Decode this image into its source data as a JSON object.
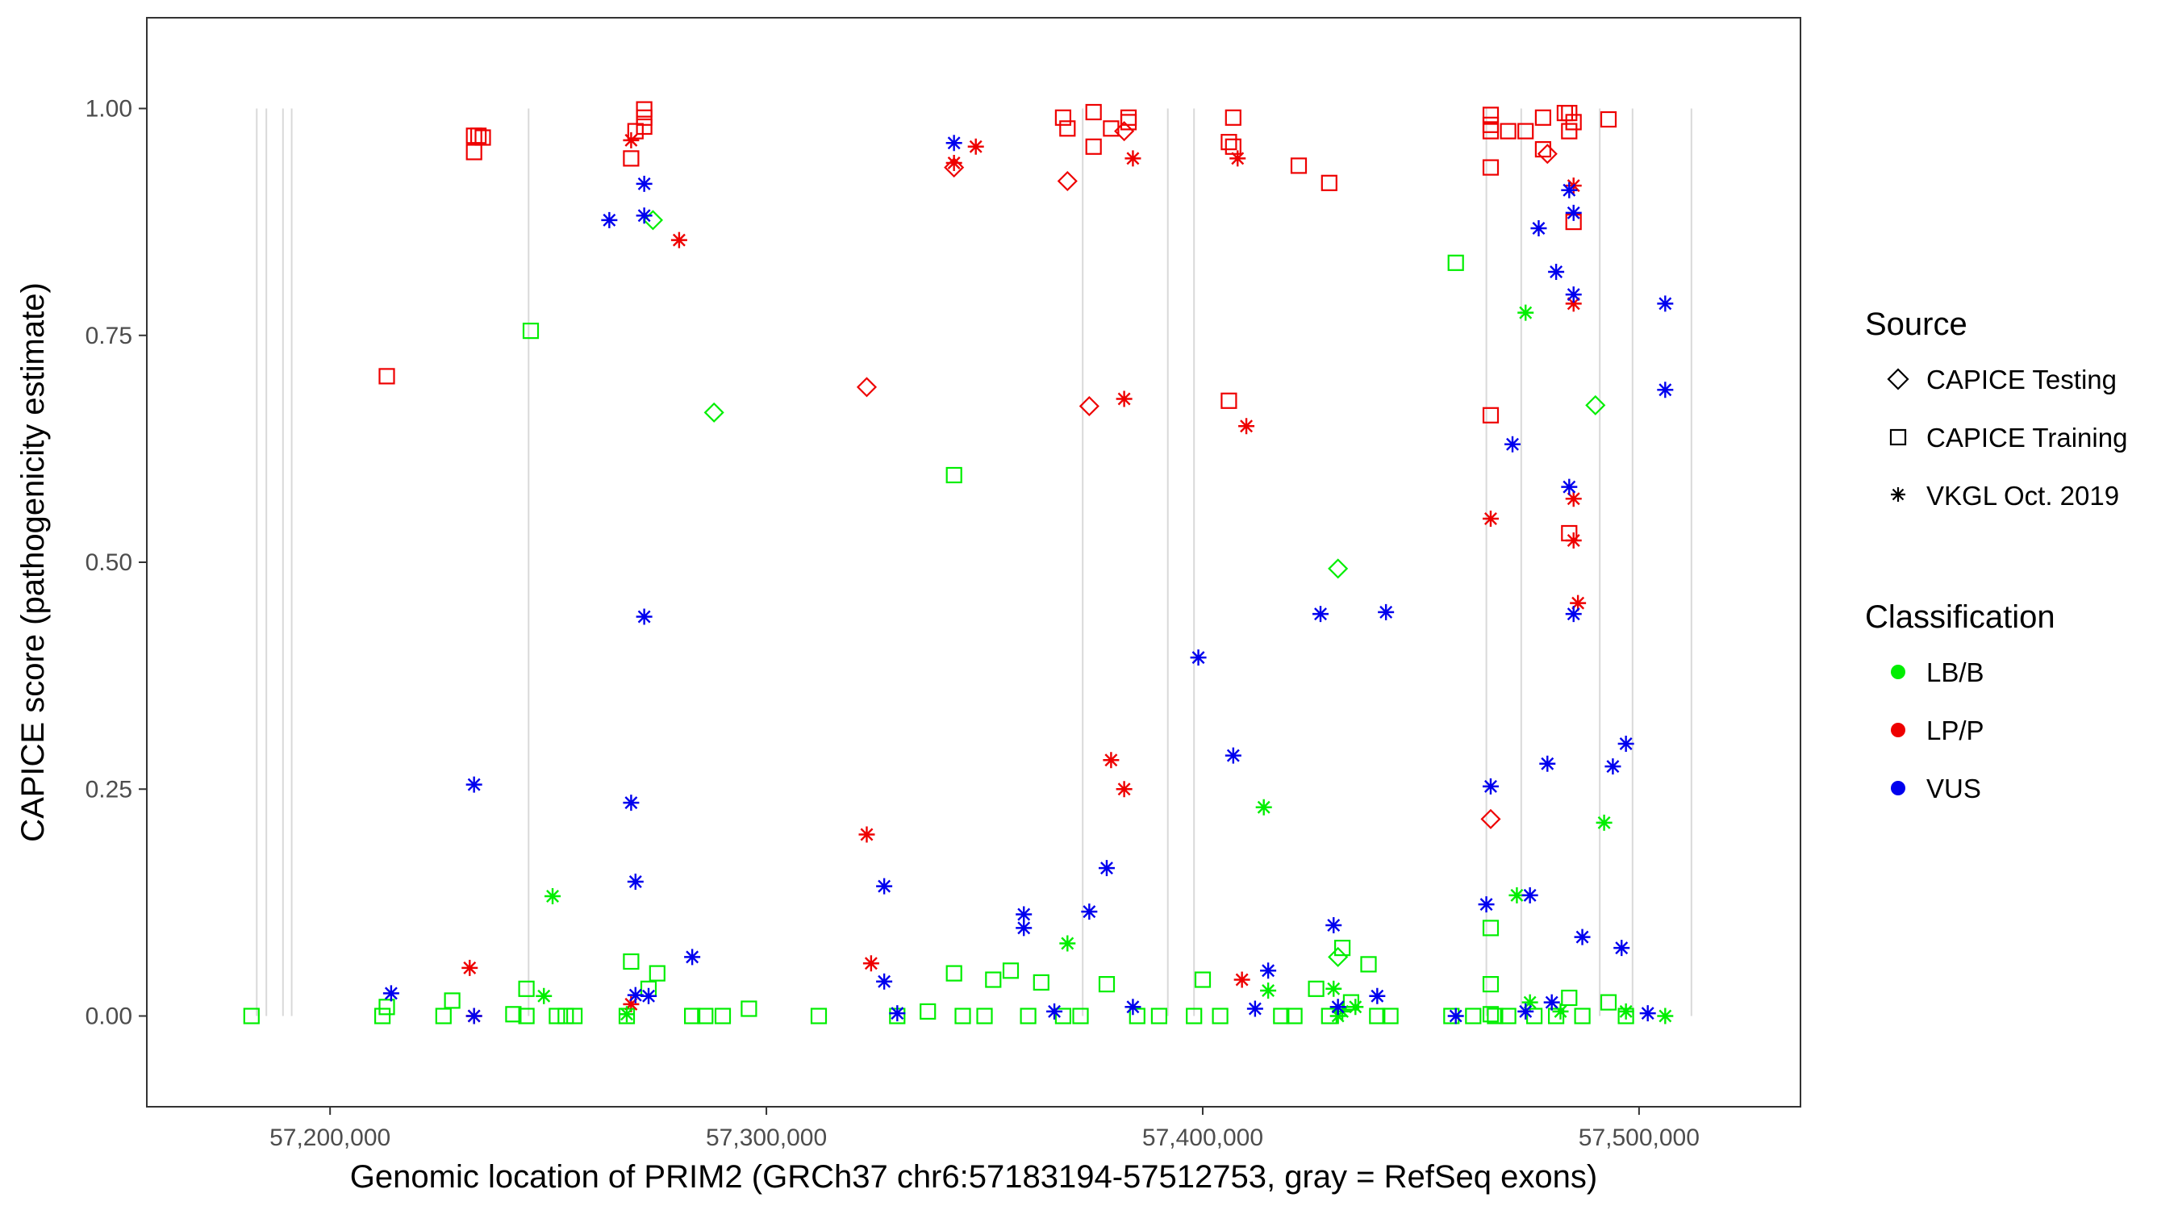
{
  "chart_data": {
    "type": "scatter",
    "title": "",
    "xlabel": "Genomic location of PRIM2 (GRCh37 chr6:57183194-57512753, gray = RefSeq exons)",
    "ylabel": "CAPICE score (pathogenicity estimate)",
    "xlim": [
      57158000,
      57537000
    ],
    "ylim": [
      -0.1,
      1.1
    ],
    "x_ticks": [
      57200000,
      57300000,
      57400000,
      57500000
    ],
    "x_tick_labels": [
      "57,200,000",
      "57,300,000",
      "57,400,000",
      "57,500,000"
    ],
    "y_ticks": [
      0,
      0.25,
      0.5,
      0.75,
      1
    ],
    "y_tick_labels": [
      "0.00",
      "0.25",
      "0.50",
      "0.75",
      "1.00"
    ],
    "grid": false,
    "exon_lines": [
      57183200,
      57185400,
      57189200,
      57191200,
      57245500,
      57372500,
      57392000,
      57398000,
      57465000,
      57473000,
      57491000,
      57498500,
      57512000
    ],
    "legend_position": "right",
    "legend": {
      "source_title": "Source",
      "source_items": [
        {
          "label": "CAPICE Testing",
          "shape": "diamond"
        },
        {
          "label": "CAPICE Training",
          "shape": "square"
        },
        {
          "label": "VKGL Oct. 2019",
          "shape": "asterisk"
        }
      ],
      "class_title": "Classification",
      "class_items": [
        {
          "label": "LB/B",
          "color": "#00ee00"
        },
        {
          "label": "LP/P",
          "color": "#ee0000"
        },
        {
          "label": "VUS",
          "color": "#0000ee"
        }
      ]
    },
    "colors": {
      "LB/B": "#00ee00",
      "LP/P": "#ee0000",
      "VUS": "#0000ee"
    },
    "series": [
      {
        "name": "CAPICE Testing / LP/P",
        "shape": "diamond",
        "class": "LP/P",
        "x": [
          57343000,
          57323000,
          57369000,
          57374000,
          57382000,
          57466000,
          57479000
        ],
        "y": [
          0.935,
          0.693,
          0.92,
          0.672,
          0.975,
          0.217,
          0.95
        ]
      },
      {
        "name": "CAPICE Testing / LB/B",
        "shape": "diamond",
        "class": "LB/B",
        "x": [
          57274000,
          57288000,
          57431000,
          57431000,
          57490000
        ],
        "y": [
          0.877,
          0.665,
          0.493,
          0.065,
          0.673
        ]
      },
      {
        "name": "CAPICE Training / LP/P",
        "shape": "square",
        "class": "LP/P",
        "x": [
          57213000,
          57233000,
          57234000,
          57235000,
          57233000,
          57270000,
          57272000,
          57272000,
          57272000,
          57269000,
          57368000,
          57369000,
          57375000,
          57375000,
          57379000,
          57383000,
          57383000,
          57407000,
          57406000,
          57407000,
          57406000,
          57422000,
          57429000,
          57466000,
          57466000,
          57466000,
          57470000,
          57474000,
          57478000,
          57478000,
          57483000,
          57484000,
          57485000,
          57493000,
          57466000,
          57466000,
          57484000,
          57485000,
          57484000
        ],
        "y": [
          0.705,
          0.97,
          0.97,
          0.968,
          0.952,
          0.975,
          0.999,
          0.99,
          0.98,
          0.945,
          0.99,
          0.978,
          0.996,
          0.958,
          0.978,
          0.99,
          0.985,
          0.99,
          0.963,
          0.958,
          0.678,
          0.937,
          0.918,
          0.993,
          0.982,
          0.975,
          0.975,
          0.975,
          0.99,
          0.955,
          0.995,
          0.995,
          0.985,
          0.988,
          0.935,
          0.662,
          0.532,
          0.875,
          0.975
        ]
      },
      {
        "name": "CAPICE Training / LB/B",
        "shape": "square",
        "class": "LB/B",
        "x": [
          57182000,
          57212000,
          57213000,
          57226000,
          57228000,
          57242000,
          57245000,
          57245000,
          57246000,
          57252000,
          57254000,
          57256000,
          57268000,
          57269000,
          57273000,
          57275000,
          57283000,
          57286000,
          57290000,
          57296000,
          57312000,
          57330000,
          57337000,
          57343000,
          57345000,
          57350000,
          57352000,
          57356000,
          57360000,
          57363000,
          57368000,
          57372000,
          57378000,
          57385000,
          57390000,
          57398000,
          57400000,
          57404000,
          57418000,
          57421000,
          57426000,
          57429000,
          57432000,
          57434000,
          57438000,
          57440000,
          57443000,
          57457000,
          57458000,
          57462000,
          57466000,
          57467000,
          57470000,
          57476000,
          57481000,
          57484000,
          57487000,
          57493000,
          57497000,
          57343000,
          57466000,
          57466000
        ],
        "y": [
          0.0,
          0.0,
          0.01,
          0.0,
          0.017,
          0.002,
          0.0,
          0.03,
          0.755,
          0.0,
          0.0,
          0.0,
          0.0,
          0.06,
          0.03,
          0.047,
          0.0,
          0.0,
          0.0,
          0.008,
          0.0,
          0.0,
          0.005,
          0.047,
          0.0,
          0.0,
          0.04,
          0.05,
          0.0,
          0.037,
          0.0,
          0.0,
          0.035,
          0.0,
          0.0,
          0.0,
          0.04,
          0.0,
          0.0,
          0.0,
          0.03,
          0.0,
          0.075,
          0.015,
          0.057,
          0.0,
          0.0,
          0.0,
          0.83,
          0.0,
          0.035,
          0.0,
          0.0,
          0.0,
          0.0,
          0.02,
          0.0,
          0.015,
          0.0,
          0.596,
          0.097,
          0.002
        ]
      },
      {
        "name": "VKGL Oct. 2019 / LP/P",
        "shape": "asterisk",
        "class": "LP/P",
        "x": [
          57232000,
          57233000,
          57269000,
          57280000,
          57323000,
          57324000,
          57343000,
          57348000,
          57379000,
          57382000,
          57382000,
          57384000,
          57408000,
          57409000,
          57410000,
          57466000,
          57485000,
          57485000,
          57485000,
          57485000,
          57486000,
          57269000
        ],
        "y": [
          0.053,
          0.0,
          0.965,
          0.855,
          0.2,
          0.058,
          0.94,
          0.958,
          0.282,
          0.25,
          0.68,
          0.945,
          0.945,
          0.04,
          0.65,
          0.548,
          0.915,
          0.785,
          0.57,
          0.524,
          0.455,
          0.013
        ]
      },
      {
        "name": "VKGL Oct. 2019 / LB/B",
        "shape": "asterisk",
        "class": "LB/B",
        "x": [
          57249000,
          57251000,
          57268000,
          57369000,
          57414000,
          57415000,
          57430000,
          57431000,
          57432000,
          57435000,
          57472000,
          57474000,
          57475000,
          57482000,
          57492000,
          57497000,
          57506000
        ],
        "y": [
          0.022,
          0.132,
          0.002,
          0.08,
          0.23,
          0.028,
          0.03,
          0.0,
          0.005,
          0.01,
          0.133,
          0.775,
          0.015,
          0.005,
          0.213,
          0.005,
          0.0
        ]
      },
      {
        "name": "VKGL Oct. 2019 / VUS",
        "shape": "asterisk",
        "class": "VUS",
        "x": [
          57214000,
          57233000,
          57233000,
          57264000,
          57269000,
          57270000,
          57270000,
          57272000,
          57272000,
          57272000,
          57273000,
          57283000,
          57327000,
          57327000,
          57330000,
          57343000,
          57359000,
          57359000,
          57366000,
          57374000,
          57378000,
          57384000,
          57399000,
          57407000,
          57412000,
          57415000,
          57427000,
          57430000,
          57431000,
          57440000,
          57442000,
          57458000,
          57465000,
          57466000,
          57471000,
          57474000,
          57475000,
          57477000,
          57479000,
          57480000,
          57481000,
          57484000,
          57484000,
          57485000,
          57485000,
          57485000,
          57487000,
          57494000,
          57496000,
          57497000,
          57502000,
          57506000,
          57506000
        ],
        "y": [
          0.025,
          0.255,
          0.0,
          0.877,
          0.235,
          0.148,
          0.023,
          0.917,
          0.882,
          0.44,
          0.022,
          0.065,
          0.143,
          0.038,
          0.003,
          0.962,
          0.112,
          0.097,
          0.005,
          0.115,
          0.163,
          0.01,
          0.395,
          0.287,
          0.008,
          0.05,
          0.443,
          0.1,
          0.01,
          0.022,
          0.445,
          0.0,
          0.123,
          0.253,
          0.63,
          0.005,
          0.133,
          0.868,
          0.278,
          0.015,
          0.82,
          0.583,
          0.91,
          0.795,
          0.885,
          0.443,
          0.087,
          0.275,
          0.075,
          0.3,
          0.003,
          0.785,
          0.69
        ]
      }
    ]
  }
}
